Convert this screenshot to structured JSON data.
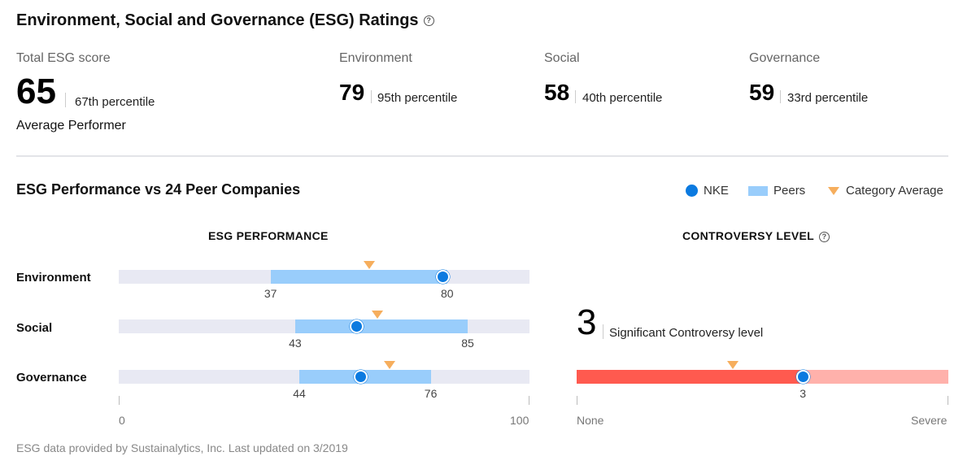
{
  "header": {
    "title": "Environment, Social and Governance (ESG) Ratings",
    "help_icon": "question-circle-icon"
  },
  "scores": {
    "total": {
      "label": "Total ESG score",
      "value": "65",
      "percentile": "67th percentile",
      "performer": "Average Performer"
    },
    "environment": {
      "label": "Environment",
      "value": "79",
      "percentile": "95th percentile"
    },
    "social": {
      "label": "Social",
      "value": "58",
      "percentile": "40th percentile"
    },
    "governance": {
      "label": "Governance",
      "value": "59",
      "percentile": "33rd percentile"
    }
  },
  "performance": {
    "title": "ESG Performance vs 24 Peer Companies",
    "legend": {
      "nke": "NKE",
      "peers": "Peers",
      "category_average": "Category Average"
    },
    "column_title": "ESG PERFORMANCE",
    "axis_min_label": "0",
    "axis_max_label": "100",
    "rows": [
      {
        "label": "Environment",
        "peer_min": 37,
        "peer_max": 80,
        "peer_min_label": "37",
        "peer_max_label": "80",
        "nke": 79,
        "category_average": 61
      },
      {
        "label": "Social",
        "peer_min": 43,
        "peer_max": 85,
        "peer_min_label": "43",
        "peer_max_label": "85",
        "nke": 58,
        "category_average": 63
      },
      {
        "label": "Governance",
        "peer_min": 44,
        "peer_max": 76,
        "peer_min_label": "44",
        "peer_max_label": "76",
        "nke": 59,
        "category_average": 66
      }
    ]
  },
  "controversy": {
    "title": "CONTROVERSY LEVEL",
    "help_icon": "question-circle-icon",
    "value": "3",
    "description": "Significant Controversy level",
    "bar_value": 3,
    "bar_max": 5,
    "category_average": 2.1,
    "value_label": "3",
    "min_label": "None",
    "max_label": "Severe",
    "colors": {
      "filled": "#ff5a4f",
      "unfilled": "#ffb1ab"
    }
  },
  "footer": {
    "text": "ESG data provided by Sustainalytics, Inc.  Last updated on 3/2019"
  }
}
